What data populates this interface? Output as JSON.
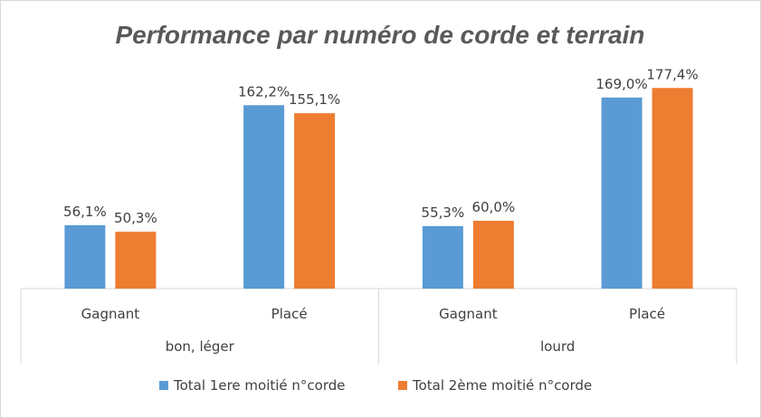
{
  "chart_data": {
    "type": "bar",
    "title": "Performance par numéro de corde et terrain",
    "groups": [
      {
        "label": "bon, léger",
        "categories": [
          "Gagnant",
          "Placé"
        ]
      },
      {
        "label": "lourd",
        "categories": [
          "Gagnant",
          "Placé"
        ]
      }
    ],
    "categories": [
      "Gagnant",
      "Placé",
      "Gagnant",
      "Placé"
    ],
    "series": [
      {
        "name": "Total 1ere moitié n°corde",
        "color": "#5b9bd5",
        "values": [
          56.1,
          162.2,
          55.3,
          169.0
        ],
        "labels": [
          "56,1%",
          "162,2%",
          "55,3%",
          "169,0%"
        ]
      },
      {
        "name": "Total 2ème moitié n°corde",
        "color": "#ed7d31",
        "values": [
          50.3,
          155.1,
          60.0,
          177.4
        ],
        "labels": [
          "50,3%",
          "155,1%",
          "60,0%",
          "177,4%"
        ]
      }
    ],
    "ylim": [
      0,
      200
    ],
    "grid": false,
    "legend": "bottom"
  }
}
